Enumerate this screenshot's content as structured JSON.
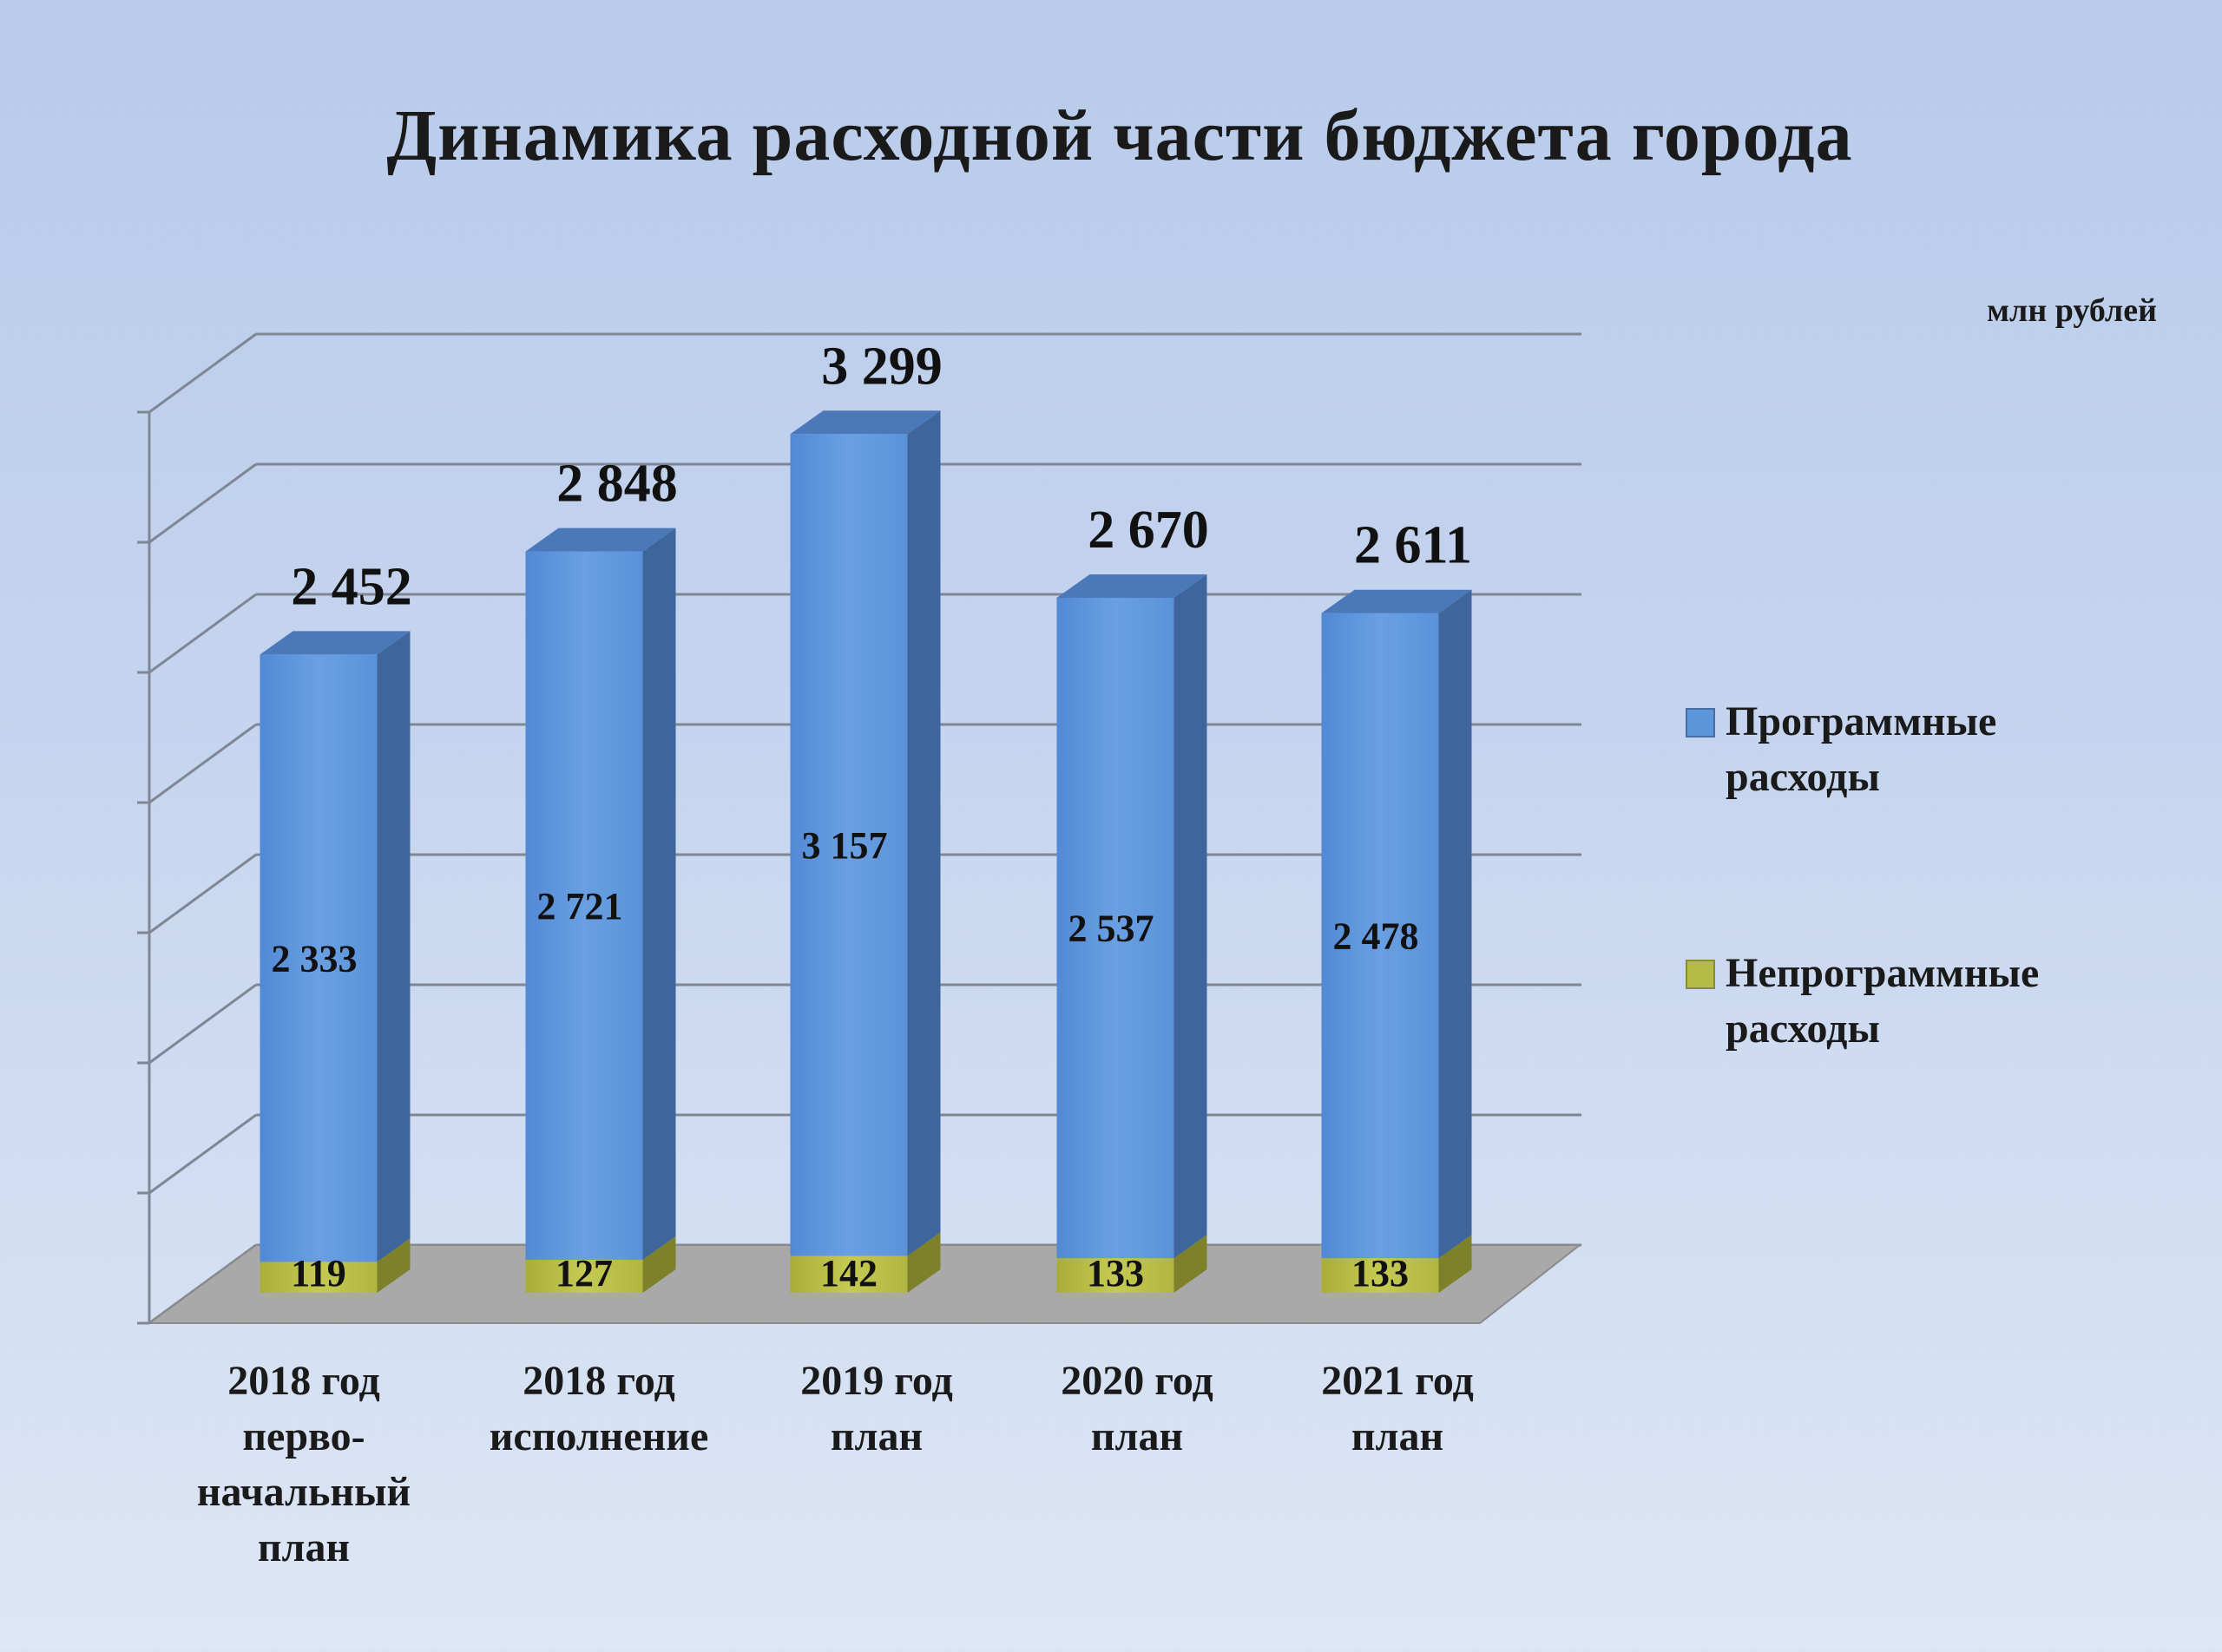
{
  "chart_data": {
    "type": "bar",
    "stacked": true,
    "three_d": true,
    "title": "Динамика  расходной части бюджета города",
    "unit_label": "млн рублей",
    "categories": [
      "2018 год\nперво-\nначальный\nплан",
      "2018 год\nисполнение",
      "2019 год\nплан",
      "2020 год\nплан",
      "2021 год\nплан"
    ],
    "totals": [
      2452,
      2848,
      3299,
      2670,
      2611
    ],
    "total_labels": [
      "2 452",
      "2 848",
      "3 299",
      "2 670",
      "2 611"
    ],
    "series": [
      {
        "name": "Непрограммные расходы",
        "values": [
          119,
          127,
          142,
          133,
          133
        ],
        "labels": [
          "119",
          "127",
          "142",
          "133",
          "133"
        ],
        "color": "#b5bc45"
      },
      {
        "name": "Программные расходы",
        "values": [
          2333,
          2721,
          3157,
          2537,
          2478
        ],
        "labels": [
          "2 333",
          "2 721",
          "3 157",
          "2 537",
          "2 478"
        ],
        "color": "#5e96dc"
      }
    ],
    "legend": [
      {
        "line1": "Программные",
        "line2": "расходы",
        "color": "#5e96dc"
      },
      {
        "line1": "Непрограммные",
        "line2": "расходы",
        "color": "#b5bc45"
      }
    ],
    "ylim": [
      0,
      3500
    ],
    "grid": true,
    "legend_position": "right"
  }
}
